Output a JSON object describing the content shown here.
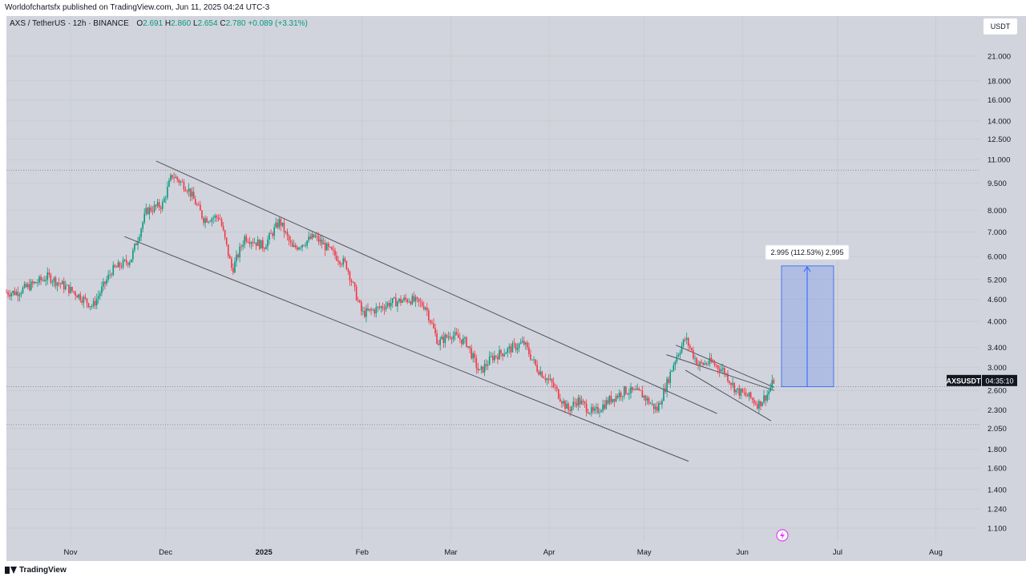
{
  "header": {
    "published": "Worldofchartsfx published on TradingView.com, Jun 11, 2025 04:24 UTC-3",
    "symbol_line": "AXS / TetherUS · 12h · BINANCE",
    "o_label": "O",
    "o_value": "2.691",
    "h_label": "H",
    "h_value": "2.860",
    "l_label": "L",
    "l_value": "2.654",
    "c_label": "C",
    "c_value": "2.780",
    "change": "+0.089 (+3.31%)"
  },
  "currency_button": "USDT",
  "footer": {
    "brand": "TradingView"
  },
  "colors": {
    "background": "#d1d4dc",
    "up": "#089981",
    "down": "#f23645",
    "measure": "#2962ff",
    "measure_fill": "rgba(41,98,255,0.2)"
  },
  "chart_data": {
    "type": "candlestick",
    "y_scale": "log",
    "y_ticks": [
      "1.100",
      "1.240",
      "1.400",
      "1.600",
      "1.800",
      "2.050",
      "2.300",
      "2.600",
      "3.000",
      "3.400",
      "4.000",
      "4.600",
      "5.200",
      "6.000",
      "7.000",
      "8.000",
      "9.500",
      "11.000",
      "12.500",
      "14.000",
      "16.000",
      "18.000",
      "21.000"
    ],
    "x_ticks": [
      "Nov",
      "Dec",
      "2025",
      "Feb",
      "Mar",
      "Apr",
      "May",
      "Jun",
      "Jul",
      "Aug"
    ],
    "price_label": {
      "symbol": "AXSUSDT",
      "countdown": "04:35:10",
      "value": 2.78
    },
    "measure": {
      "label": "2.995 (112.53%) 2,995",
      "from": 2.66,
      "to": 5.66
    },
    "reference_levels": [
      10.3,
      2.1,
      2.66
    ],
    "series": [
      {
        "date": "2024-10-15",
        "close": 4.8
      },
      {
        "date": "2024-10-25",
        "close": 5.3
      },
      {
        "date": "2024-11-03",
        "close": 4.75
      },
      {
        "date": "2024-11-08",
        "close": 4.4
      },
      {
        "date": "2024-11-14",
        "close": 5.5
      },
      {
        "date": "2024-11-20",
        "close": 5.9
      },
      {
        "date": "2024-11-25",
        "close": 8.0
      },
      {
        "date": "2024-11-30",
        "close": 8.3
      },
      {
        "date": "2024-12-03",
        "close": 10.0
      },
      {
        "date": "2024-12-08",
        "close": 9.2
      },
      {
        "date": "2024-12-13",
        "close": 7.6
      },
      {
        "date": "2024-12-18",
        "close": 7.7
      },
      {
        "date": "2024-12-22",
        "close": 5.5
      },
      {
        "date": "2024-12-26",
        "close": 6.8
      },
      {
        "date": "2025-01-01",
        "close": 6.4
      },
      {
        "date": "2025-01-06",
        "close": 7.5
      },
      {
        "date": "2025-01-10",
        "close": 6.3
      },
      {
        "date": "2025-01-17",
        "close": 6.8
      },
      {
        "date": "2025-01-22",
        "close": 6.2
      },
      {
        "date": "2025-01-27",
        "close": 5.7
      },
      {
        "date": "2025-02-01",
        "close": 4.2
      },
      {
        "date": "2025-02-05",
        "close": 4.3
      },
      {
        "date": "2025-02-10",
        "close": 4.5
      },
      {
        "date": "2025-02-16",
        "close": 4.6
      },
      {
        "date": "2025-02-21",
        "close": 4.4
      },
      {
        "date": "2025-02-25",
        "close": 3.5
      },
      {
        "date": "2025-03-01",
        "close": 3.7
      },
      {
        "date": "2025-03-06",
        "close": 3.5
      },
      {
        "date": "2025-03-10",
        "close": 2.9
      },
      {
        "date": "2025-03-14",
        "close": 3.2
      },
      {
        "date": "2025-03-19",
        "close": 3.35
      },
      {
        "date": "2025-03-24",
        "close": 3.5
      },
      {
        "date": "2025-03-28",
        "close": 3.0
      },
      {
        "date": "2025-04-02",
        "close": 2.7
      },
      {
        "date": "2025-04-07",
        "close": 2.3
      },
      {
        "date": "2025-04-10",
        "close": 2.45
      },
      {
        "date": "2025-04-15",
        "close": 2.25
      },
      {
        "date": "2025-04-20",
        "close": 2.45
      },
      {
        "date": "2025-04-25",
        "close": 2.6
      },
      {
        "date": "2025-04-30",
        "close": 2.55
      },
      {
        "date": "2025-05-05",
        "close": 2.3
      },
      {
        "date": "2025-05-08",
        "close": 2.7
      },
      {
        "date": "2025-05-11",
        "close": 3.2
      },
      {
        "date": "2025-05-14",
        "close": 3.6
      },
      {
        "date": "2025-05-18",
        "close": 3.05
      },
      {
        "date": "2025-05-22",
        "close": 3.1
      },
      {
        "date": "2025-05-26",
        "close": 2.95
      },
      {
        "date": "2025-05-30",
        "close": 2.6
      },
      {
        "date": "2025-06-03",
        "close": 2.5
      },
      {
        "date": "2025-06-06",
        "close": 2.38
      },
      {
        "date": "2025-06-09",
        "close": 2.55
      },
      {
        "date": "2025-06-11",
        "close": 2.78
      }
    ]
  }
}
